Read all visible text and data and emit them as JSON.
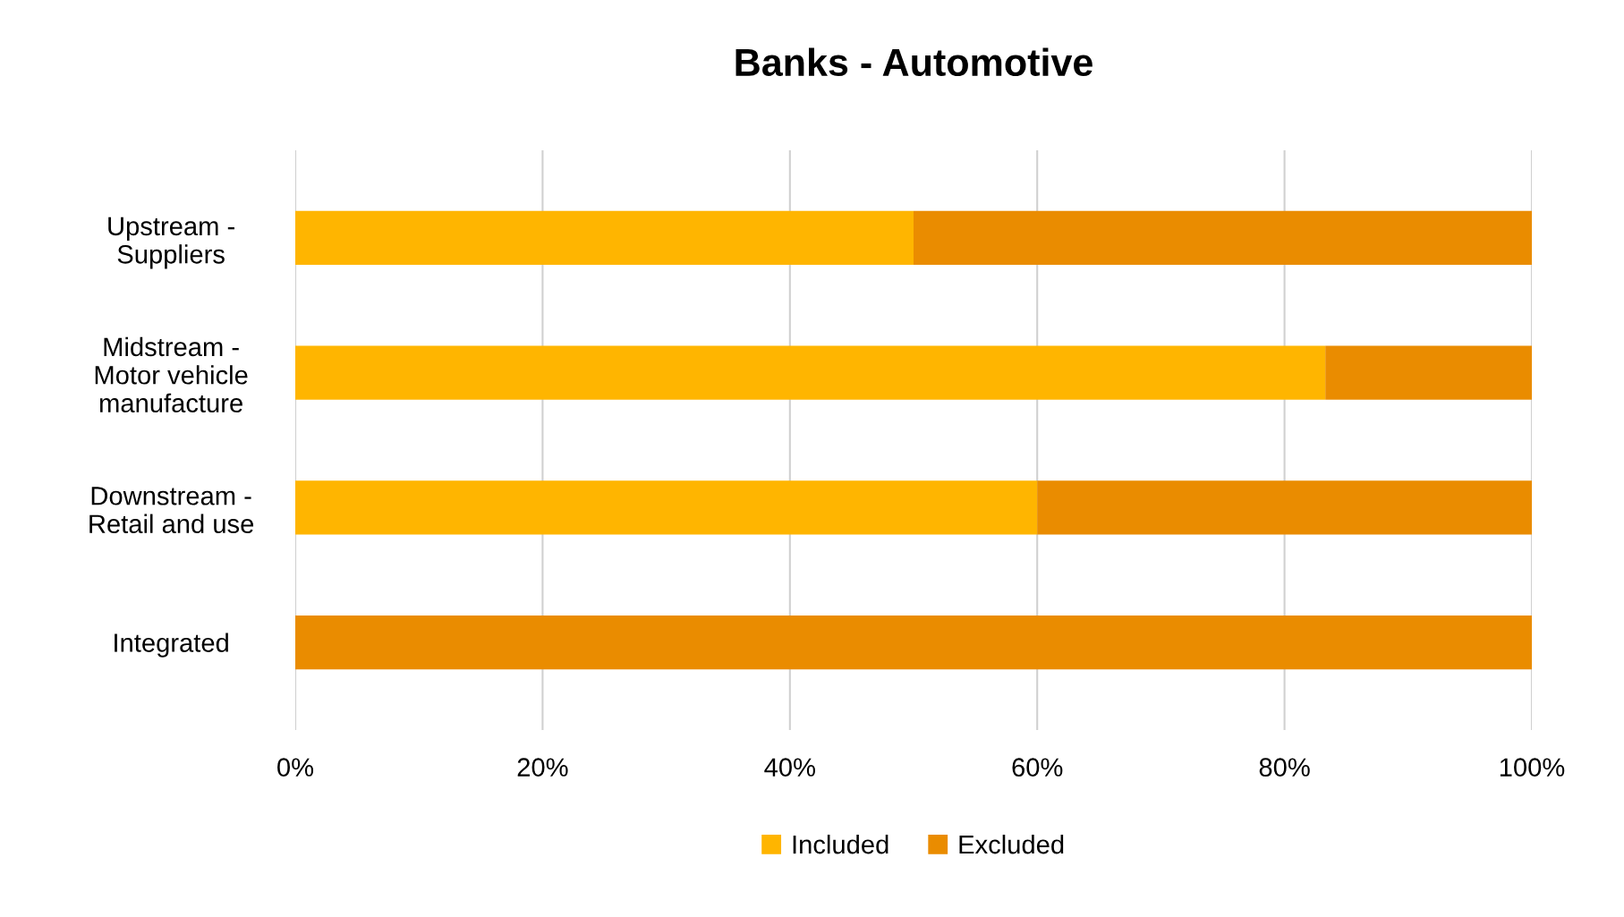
{
  "chart_data": {
    "type": "bar",
    "title": "Banks - Automotive",
    "orientation": "horizontal",
    "stacked": true,
    "categories": [
      "Upstream -\nSuppliers",
      "Midstream -\nMotor vehicle\nmanufacture",
      "Downstream -\nRetail and use",
      "Integrated"
    ],
    "series": [
      {
        "name": "Included",
        "color": "#ffb500",
        "values": [
          50,
          83.3,
          60,
          0
        ]
      },
      {
        "name": "Excluded",
        "color": "#ea8c00",
        "values": [
          50,
          16.7,
          40,
          100
        ]
      }
    ],
    "xlim": [
      0,
      100
    ],
    "xticks": [
      {
        "value": 0,
        "label": "0%"
      },
      {
        "value": 20,
        "label": "20%"
      },
      {
        "value": 40,
        "label": "40%"
      },
      {
        "value": 60,
        "label": "60%"
      },
      {
        "value": 80,
        "label": "80%"
      },
      {
        "value": 100,
        "label": "100%"
      }
    ],
    "grid": "x",
    "legend": "bottom"
  }
}
